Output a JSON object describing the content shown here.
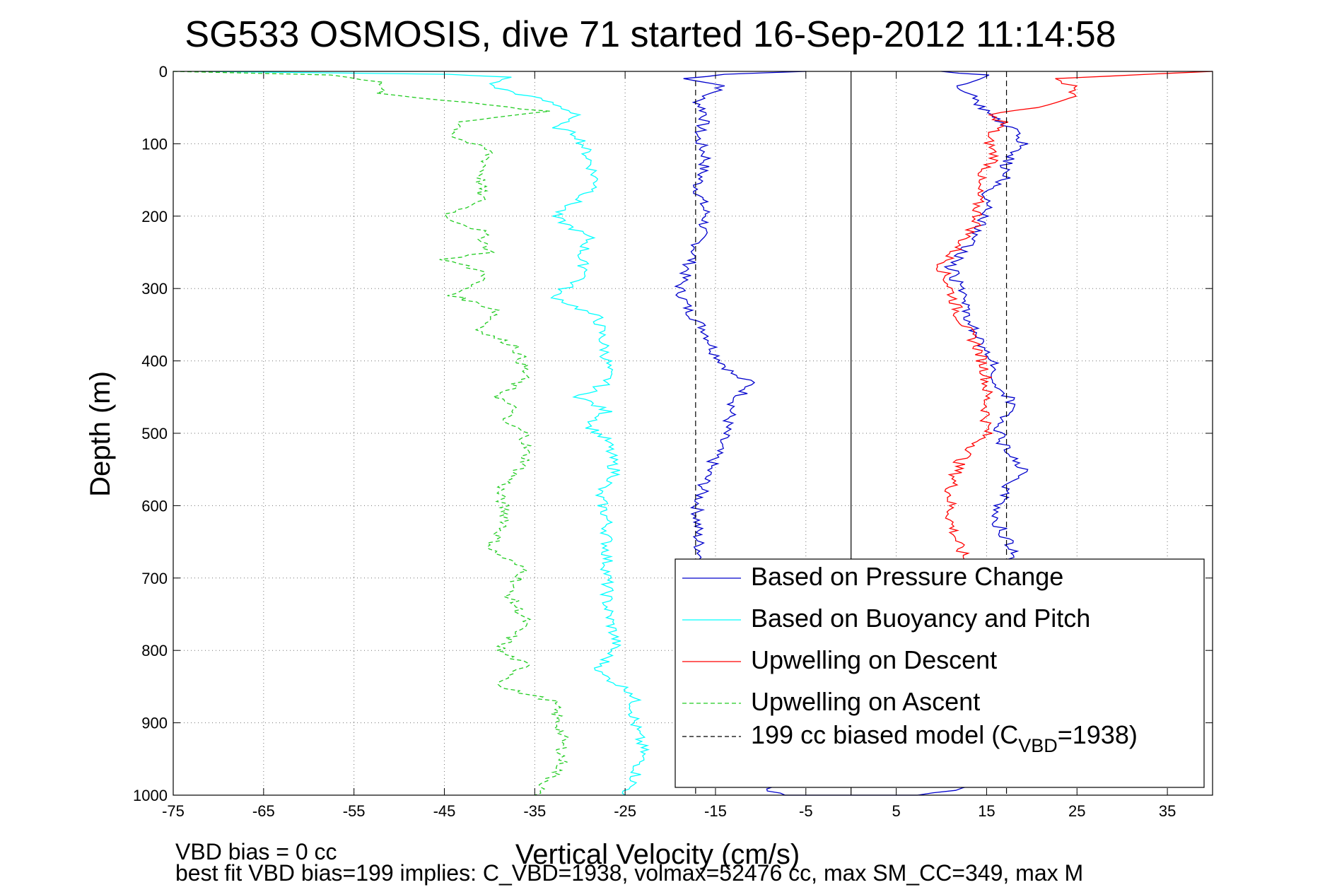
{
  "chart_data": {
    "type": "line",
    "title": "SG533 OSMOSIS, dive 71 started 16-Sep-2012 11:14:58",
    "xlabel": "Vertical Velocity (cm/s)",
    "ylabel": "Depth (m)",
    "xlim": [
      -75,
      40
    ],
    "ylim": [
      0,
      1000
    ],
    "y_reversed": true,
    "grid": true,
    "legend_position": "bottom-right",
    "xticks": [
      "-75",
      "-65",
      "-55",
      "-45",
      "-35",
      "-25",
      "-15",
      "-5",
      "5",
      "15",
      "25",
      "35"
    ],
    "yticks": [
      "0",
      "100",
      "200",
      "300",
      "400",
      "500",
      "600",
      "700",
      "800",
      "900",
      "1000"
    ],
    "series": [
      {
        "name": "Based on Pressure Change",
        "color": "#0000cc",
        "style": "solid",
        "points": [
          [
            -5,
            0
          ],
          [
            -14,
            4
          ],
          [
            -18,
            10
          ],
          [
            -14,
            20
          ],
          [
            -17,
            40
          ],
          [
            -16,
            60
          ],
          [
            -17,
            90
          ],
          [
            -16,
            120
          ],
          [
            -17,
            160
          ],
          [
            -16,
            200
          ],
          [
            -17,
            240
          ],
          [
            -18,
            270
          ],
          [
            -19,
            300
          ],
          [
            -18,
            330
          ],
          [
            -16,
            360
          ],
          [
            -15,
            390
          ],
          [
            -13,
            420
          ],
          [
            -11,
            430
          ],
          [
            -13,
            460
          ],
          [
            -14,
            500
          ],
          [
            -15,
            530
          ],
          [
            -16,
            560
          ],
          [
            -17,
            600
          ],
          [
            -17,
            640
          ],
          [
            -16.5,
            680
          ],
          [
            -15,
            750
          ],
          [
            -14,
            820
          ],
          [
            -13,
            900
          ],
          [
            -12,
            960
          ],
          [
            -8,
            1000
          ],
          [
            7,
            1000
          ],
          [
            13,
            990
          ],
          [
            15,
            980
          ],
          [
            15,
            930
          ],
          [
            16,
            880
          ],
          [
            17,
            820
          ],
          [
            18,
            760
          ],
          [
            17,
            700
          ],
          [
            18,
            660
          ],
          [
            16,
            620
          ],
          [
            17,
            580
          ],
          [
            19,
            550
          ],
          [
            17,
            520
          ],
          [
            16,
            490
          ],
          [
            18,
            460
          ],
          [
            16,
            430
          ],
          [
            16,
            400
          ],
          [
            14,
            370
          ],
          [
            13,
            340
          ],
          [
            12,
            300
          ],
          [
            11,
            270
          ],
          [
            13,
            240
          ],
          [
            15,
            200
          ],
          [
            15,
            170
          ],
          [
            17,
            150
          ],
          [
            17,
            130
          ],
          [
            19,
            100
          ],
          [
            18,
            80
          ],
          [
            15,
            60
          ],
          [
            14,
            40
          ],
          [
            12,
            20
          ],
          [
            15,
            5
          ],
          [
            10,
            0
          ]
        ]
      },
      {
        "name": "Based on Buoyancy and Pitch",
        "color": "#00ffff",
        "style": "solid",
        "points": [
          [
            -72,
            0
          ],
          [
            -45,
            4
          ],
          [
            -38,
            8
          ],
          [
            -40,
            20
          ],
          [
            -34,
            40
          ],
          [
            -30,
            60
          ],
          [
            -33,
            75
          ],
          [
            -30,
            90
          ],
          [
            -29,
            120
          ],
          [
            -28,
            160
          ],
          [
            -33,
            200
          ],
          [
            -29,
            230
          ],
          [
            -30,
            260
          ],
          [
            -29,
            280
          ],
          [
            -33,
            310
          ],
          [
            -28,
            340
          ],
          [
            -27,
            400
          ],
          [
            -27,
            430
          ],
          [
            -30,
            450
          ],
          [
            -27,
            470
          ],
          [
            -29,
            490
          ],
          [
            -27,
            510
          ],
          [
            -26,
            560
          ],
          [
            -28,
            580
          ],
          [
            -27,
            620
          ],
          [
            -27,
            700
          ],
          [
            -27,
            740
          ],
          [
            -26,
            790
          ],
          [
            -28,
            830
          ],
          [
            -24,
            860
          ],
          [
            -24,
            900
          ],
          [
            -23,
            940
          ],
          [
            -24,
            980
          ],
          [
            -25,
            1000
          ]
        ]
      },
      {
        "name": "Upwelling on Descent",
        "color": "#ff0000",
        "style": "solid",
        "points": [
          [
            40,
            0
          ],
          [
            22,
            10
          ],
          [
            25,
            20
          ],
          [
            24,
            40
          ],
          [
            20,
            50
          ],
          [
            15,
            60
          ],
          [
            17,
            70
          ],
          [
            15,
            90
          ],
          [
            16,
            120
          ],
          [
            14,
            150
          ],
          [
            14,
            180
          ],
          [
            14,
            210
          ],
          [
            12,
            240
          ],
          [
            10,
            270
          ],
          [
            11,
            300
          ],
          [
            12,
            340
          ],
          [
            14,
            380
          ],
          [
            15,
            420
          ],
          [
            15,
            460
          ],
          [
            15,
            500
          ],
          [
            12,
            540
          ],
          [
            11,
            580
          ],
          [
            11,
            620
          ],
          [
            12,
            660
          ],
          [
            13,
            680
          ]
        ]
      },
      {
        "name": "Upwelling on Ascent",
        "color": "#22cc22",
        "style": "dashed",
        "points": [
          [
            -75,
            0
          ],
          [
            -57,
            5
          ],
          [
            -52,
            15
          ],
          [
            -52,
            30
          ],
          [
            -45,
            40
          ],
          [
            -34,
            55
          ],
          [
            -43,
            70
          ],
          [
            -44,
            90
          ],
          [
            -40,
            110
          ],
          [
            -41,
            150
          ],
          [
            -41,
            180
          ],
          [
            -45,
            200
          ],
          [
            -41,
            220
          ],
          [
            -40,
            250
          ],
          [
            -45,
            260
          ],
          [
            -40,
            280
          ],
          [
            -44,
            310
          ],
          [
            -39,
            330
          ],
          [
            -41,
            360
          ],
          [
            -37,
            380
          ],
          [
            -36,
            420
          ],
          [
            -39,
            450
          ],
          [
            -37,
            470
          ],
          [
            -39,
            480
          ],
          [
            -36,
            500
          ],
          [
            -36,
            540
          ],
          [
            -39,
            580
          ],
          [
            -38,
            620
          ],
          [
            -40,
            660
          ],
          [
            -36,
            690
          ],
          [
            -38,
            720
          ],
          [
            -36,
            760
          ],
          [
            -39,
            800
          ],
          [
            -36,
            820
          ],
          [
            -39,
            850
          ],
          [
            -33,
            870
          ],
          [
            -32,
            920
          ],
          [
            -32,
            960
          ],
          [
            -35,
            1000
          ]
        ]
      },
      {
        "name": "199 cc biased model (C_VBD=1938)",
        "color": "#000000",
        "style": "dashed",
        "vertical_lines": [
          -17.2,
          17.2
        ]
      }
    ],
    "zero_line": 0,
    "legend": [
      {
        "label": "Based on Pressure Change",
        "color": "#0000cc",
        "style": "solid"
      },
      {
        "label": "Based on Buoyancy and Pitch",
        "color": "#00ffff",
        "style": "solid"
      },
      {
        "label": "Upwelling on Descent",
        "color": "#ff0000",
        "style": "solid"
      },
      {
        "label": "Upwelling on Ascent",
        "color": "#22cc22",
        "style": "dashed"
      },
      {
        "label_prefix": "199 cc biased model (C",
        "label_sub": "VBD",
        "label_suffix": "=1938)",
        "color": "#000000",
        "style": "dashed"
      }
    ]
  },
  "notes": {
    "line1": "VBD bias = 0 cc",
    "line2": "best fit VBD bias=199 implies: C_VBD=1938, volmax=52476 cc, max SM_CC=349, max M"
  }
}
